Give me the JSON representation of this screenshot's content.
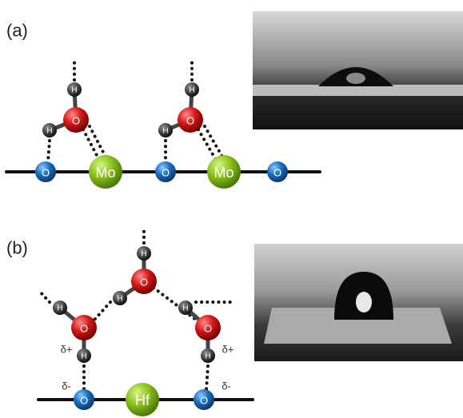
{
  "panels": [
    {
      "label": "(a)",
      "atoms": [
        "H",
        "O",
        "H",
        "H",
        "O",
        "H",
        "O",
        "Mo",
        "O",
        "Mo",
        "O"
      ]
    },
    {
      "label": "(b)",
      "atoms": [
        "H",
        "O",
        "H",
        "H",
        "O",
        "H",
        "H",
        "O",
        "H",
        "O",
        "Hf",
        "O"
      ],
      "charges": [
        "δ+",
        "δ+",
        "δ-",
        "δ-"
      ]
    }
  ]
}
